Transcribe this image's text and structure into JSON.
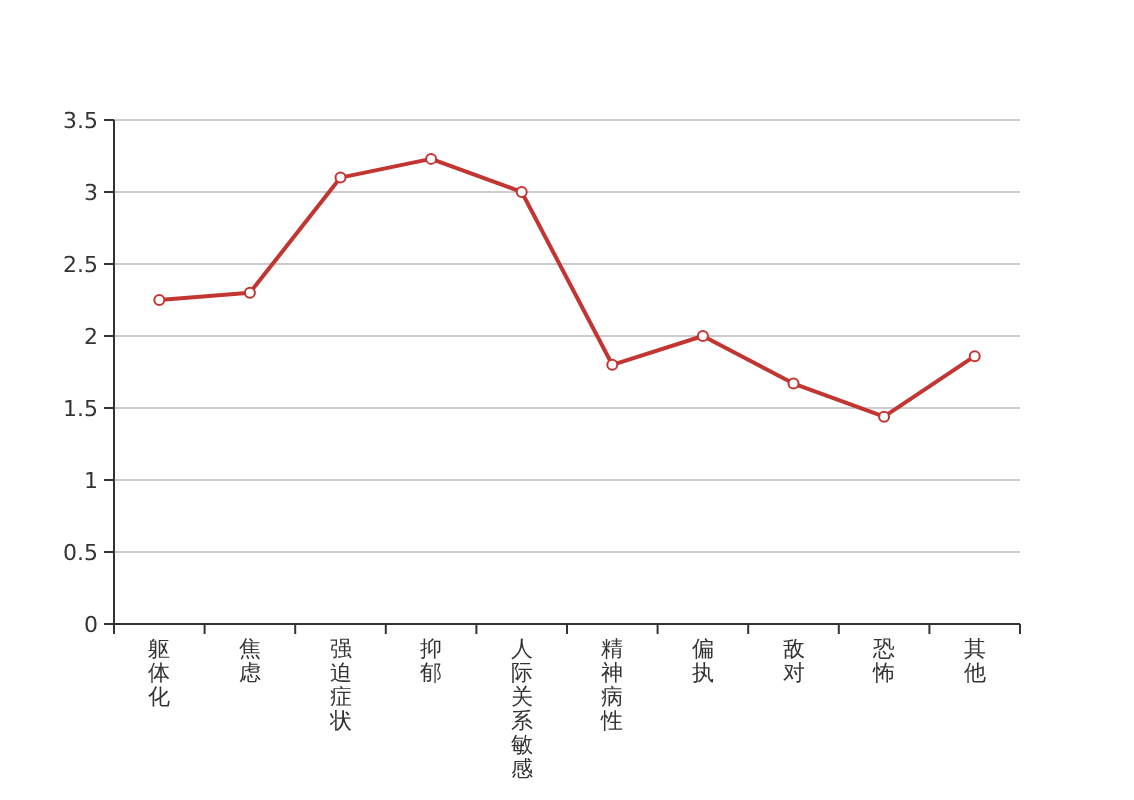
{
  "chart_data": {
    "type": "line",
    "categories": [
      "躯体化",
      "焦虑",
      "强迫症状",
      "抑郁",
      "人际关系敏感",
      "精神病性",
      "偏执",
      "敌对",
      "恐怖",
      "其他"
    ],
    "series": [
      {
        "color": "#c23531",
        "values": [
          2.25,
          2.3,
          3.1,
          3.23,
          3.0,
          1.8,
          2.0,
          1.67,
          1.44,
          1.86
        ]
      }
    ],
    "ylim": [
      0,
      3.5
    ],
    "yticks": [
      0,
      0.5,
      1,
      1.5,
      2,
      2.5,
      3,
      3.5
    ],
    "grid": "y",
    "marker": "circle",
    "line_style": "solid"
  }
}
